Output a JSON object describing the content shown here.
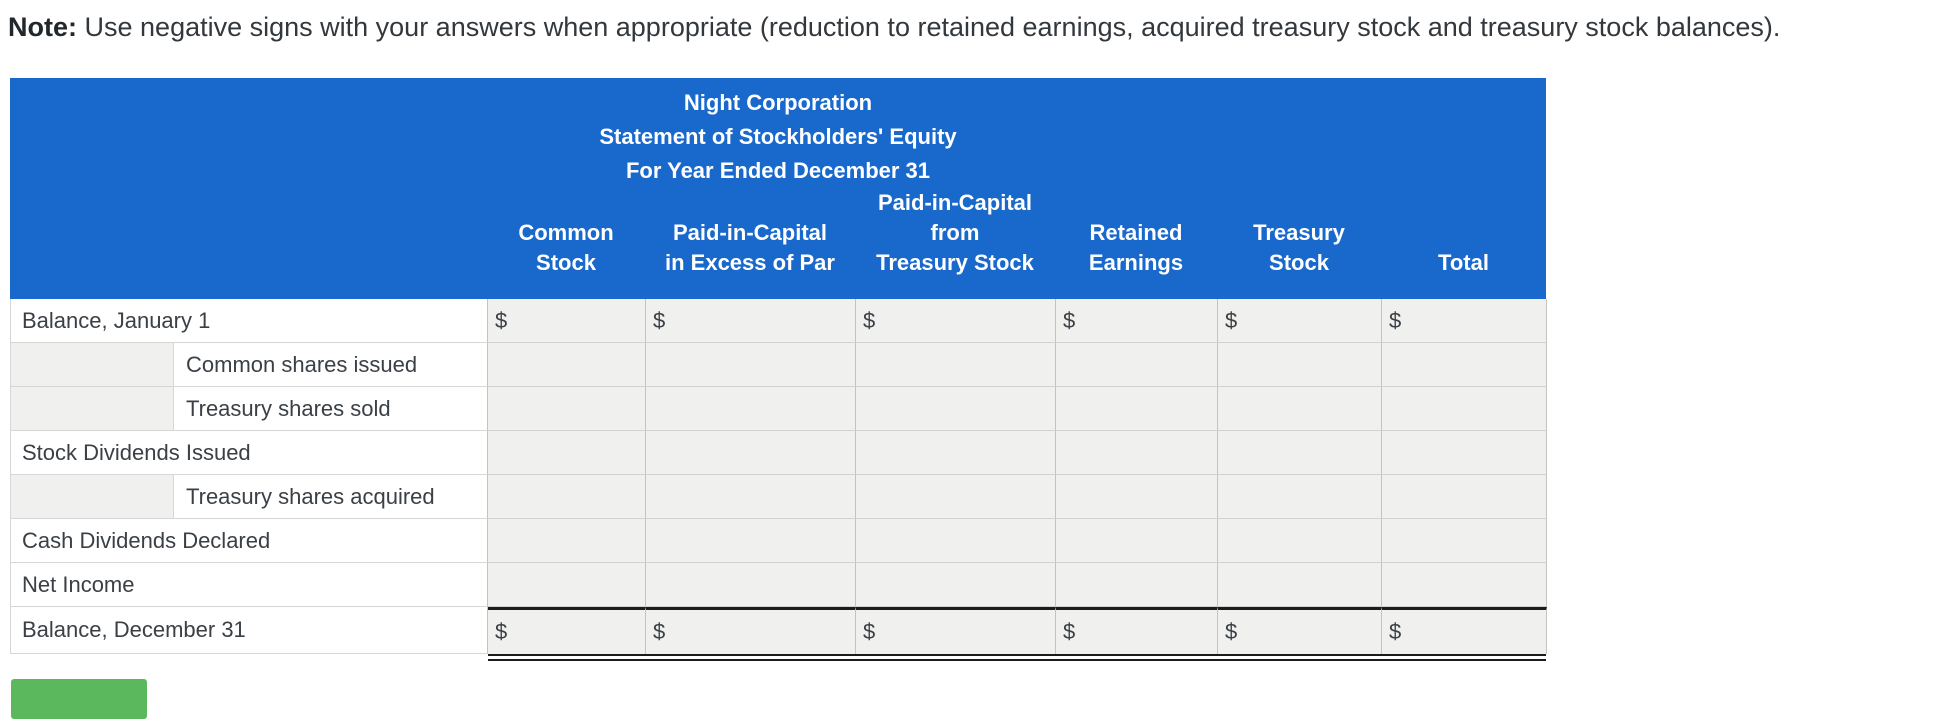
{
  "note": {
    "label": "Note:",
    "text": "Use negative signs with your answers when appropriate (reduction to retained earnings, acquired treasury stock and treasury stock balances)."
  },
  "statement": {
    "company": "Night Corporation",
    "title": "Statement of Stockholders' Equity",
    "period": "For Year Ended December 31"
  },
  "table": {
    "currency_symbol": "$",
    "columns": [
      {
        "label": "Common\nStock"
      },
      {
        "label": "Paid-in-Capital\nin Excess of Par"
      },
      {
        "label": "Paid-in-Capital\nfrom\nTreasury Stock"
      },
      {
        "label": "Retained\nEarnings"
      },
      {
        "label": "Treasury\nStock"
      },
      {
        "label": "Total"
      }
    ],
    "rows": [
      {
        "label": "Balance, January 1",
        "indent": false,
        "show_dollar": true,
        "values": [
          "",
          "",
          "",
          "",
          "",
          ""
        ]
      },
      {
        "label": "Common shares issued",
        "indent": true,
        "show_dollar": false,
        "values": [
          "",
          "",
          "",
          "",
          "",
          ""
        ]
      },
      {
        "label": "Treasury shares sold",
        "indent": true,
        "show_dollar": false,
        "values": [
          "",
          "",
          "",
          "",
          "",
          ""
        ]
      },
      {
        "label": "Stock Dividends Issued",
        "indent": false,
        "show_dollar": false,
        "values": [
          "",
          "",
          "",
          "",
          "",
          ""
        ]
      },
      {
        "label": "Treasury shares acquired",
        "indent": true,
        "show_dollar": false,
        "values": [
          "",
          "",
          "",
          "",
          "",
          ""
        ]
      },
      {
        "label": "Cash Dividends Declared",
        "indent": false,
        "show_dollar": false,
        "values": [
          "",
          "",
          "",
          "",
          "",
          ""
        ]
      },
      {
        "label": "Net Income",
        "indent": false,
        "show_dollar": false,
        "values": [
          "",
          "",
          "",
          "",
          "",
          ""
        ]
      },
      {
        "label": "Balance, December 31",
        "indent": false,
        "show_dollar": true,
        "values": [
          "",
          "",
          "",
          "",
          "",
          ""
        ]
      }
    ]
  },
  "colors": {
    "header_blue": "#1969cd",
    "button_green": "#5cb85c"
  }
}
